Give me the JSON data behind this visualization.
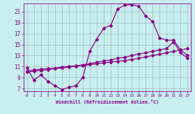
{
  "xlabel": "Windchill (Refroidissement éolien,°C)",
  "background_color": "#c8eef0",
  "line_color": "#880088",
  "xlim": [
    -0.5,
    23.5
  ],
  "ylim": [
    6.5,
    22.5
  ],
  "xticks": [
    0,
    1,
    2,
    3,
    4,
    5,
    6,
    7,
    8,
    9,
    10,
    11,
    12,
    13,
    14,
    15,
    16,
    17,
    18,
    19,
    20,
    21,
    22,
    23
  ],
  "yticks": [
    7,
    9,
    11,
    13,
    15,
    17,
    19,
    21
  ],
  "curve1_x": [
    0,
    1,
    2,
    3,
    4,
    5,
    6,
    7,
    8,
    9,
    10,
    11,
    12,
    13,
    14,
    15,
    16,
    17,
    18,
    19,
    20,
    21,
    22,
    23
  ],
  "curve1_y": [
    10.8,
    8.5,
    9.5,
    8.3,
    7.5,
    6.8,
    7.2,
    7.5,
    9.0,
    13.8,
    16.0,
    18.0,
    18.5,
    21.5,
    22.2,
    22.3,
    22.0,
    20.2,
    19.2,
    16.2,
    15.8,
    15.8,
    14.0,
    13.0
  ],
  "curve2_x": [
    0,
    1,
    2,
    3,
    4,
    5,
    6,
    7,
    8,
    9,
    10,
    11,
    12,
    13,
    14,
    15,
    16,
    17,
    18,
    19,
    20,
    21,
    22,
    23
  ],
  "curve2_y": [
    10.2,
    10.4,
    10.5,
    10.6,
    10.7,
    10.9,
    11.0,
    11.1,
    11.3,
    11.5,
    11.8,
    12.0,
    12.2,
    12.5,
    12.7,
    13.0,
    13.3,
    13.5,
    13.8,
    14.0,
    14.3,
    15.5,
    13.5,
    12.5
  ],
  "curve3_x": [
    0,
    1,
    2,
    3,
    4,
    5,
    6,
    7,
    8,
    9,
    10,
    11,
    12,
    13,
    14,
    15,
    16,
    17,
    18,
    19,
    20,
    21,
    22,
    23
  ],
  "curve3_y": [
    10.0,
    10.15,
    10.3,
    10.45,
    10.6,
    10.75,
    10.9,
    11.05,
    11.2,
    11.35,
    11.5,
    11.65,
    11.8,
    11.95,
    12.1,
    12.25,
    12.5,
    12.75,
    13.0,
    13.25,
    13.5,
    13.75,
    14.0,
    14.3
  ],
  "grid_color": "#9bbcbd",
  "marker": "D",
  "markersize": 2.0,
  "linewidth": 0.9
}
